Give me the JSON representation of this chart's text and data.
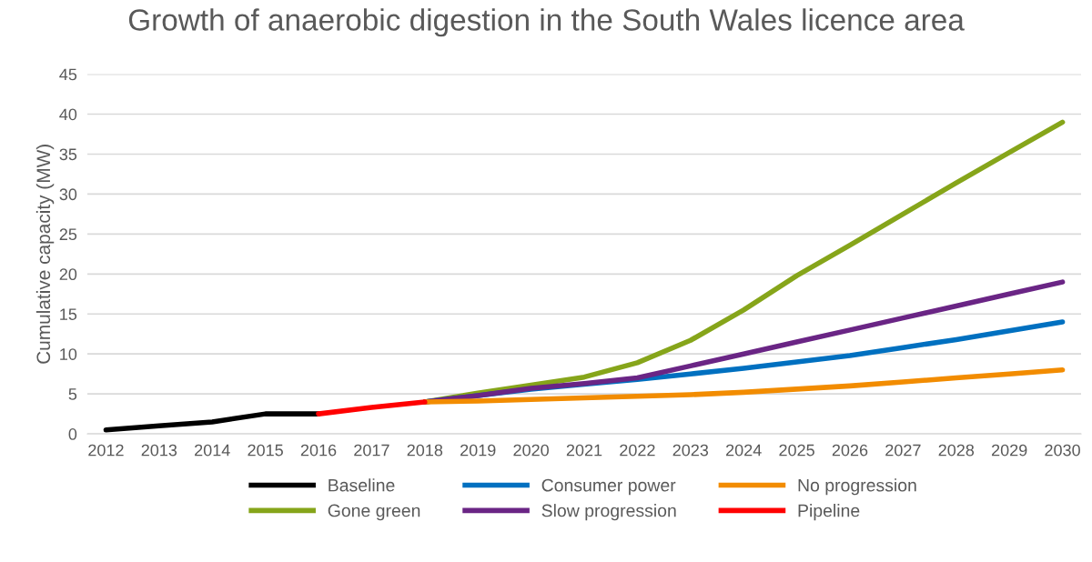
{
  "chart_data": {
    "type": "line",
    "title": "Growth of anaerobic digestion in the South Wales licence area",
    "ylabel": "Cumulative capacity (MW)",
    "categories": [
      "2012",
      "2013",
      "2014",
      "2015",
      "2016",
      "2017",
      "2018",
      "2019",
      "2020",
      "2021",
      "2022",
      "2023",
      "2024",
      "2025",
      "2026",
      "2027",
      "2028",
      "2029",
      "2030"
    ],
    "series": [
      {
        "name": "Baseline",
        "color": "#000000",
        "values": [
          0.5,
          1.0,
          1.5,
          2.5,
          2.5,
          null,
          null,
          null,
          null,
          null,
          null,
          null,
          null,
          null,
          null,
          null,
          null,
          null,
          null
        ]
      },
      {
        "name": "Gone green",
        "color": "#86a51a",
        "values": [
          null,
          null,
          null,
          null,
          null,
          null,
          4.0,
          5.1,
          6.1,
          7.1,
          8.9,
          11.7,
          15.5,
          19.8,
          23.6,
          27.5,
          31.4,
          35.2,
          39.0
        ]
      },
      {
        "name": "Consumer power",
        "color": "#0070c0",
        "values": [
          null,
          null,
          null,
          null,
          null,
          null,
          4.0,
          4.8,
          5.6,
          6.2,
          6.8,
          7.5,
          8.2,
          9.0,
          9.8,
          10.8,
          11.8,
          12.9,
          14.0
        ]
      },
      {
        "name": "Slow progression",
        "color": "#6a2585",
        "values": [
          null,
          null,
          null,
          null,
          null,
          null,
          4.0,
          4.8,
          5.7,
          6.3,
          7.0,
          8.5,
          10.0,
          11.5,
          13.0,
          14.5,
          16.0,
          17.5,
          19.0
        ]
      },
      {
        "name": "No progression",
        "color": "#f28c00",
        "values": [
          null,
          null,
          null,
          null,
          null,
          null,
          4.0,
          4.1,
          4.3,
          4.5,
          4.7,
          4.9,
          5.2,
          5.6,
          6.0,
          6.5,
          7.0,
          7.5,
          8.0
        ]
      },
      {
        "name": "Pipeline",
        "color": "#ff0000",
        "values": [
          null,
          null,
          null,
          null,
          2.5,
          3.3,
          4.0,
          null,
          null,
          null,
          null,
          null,
          null,
          null,
          null,
          null,
          null,
          null,
          null
        ]
      }
    ],
    "ylim": [
      0,
      45
    ],
    "yticks": [
      0,
      5,
      10,
      15,
      20,
      25,
      30,
      35,
      40,
      45
    ],
    "grid": "y",
    "legend": "bottom",
    "line_style": "solid",
    "marker": "none"
  }
}
